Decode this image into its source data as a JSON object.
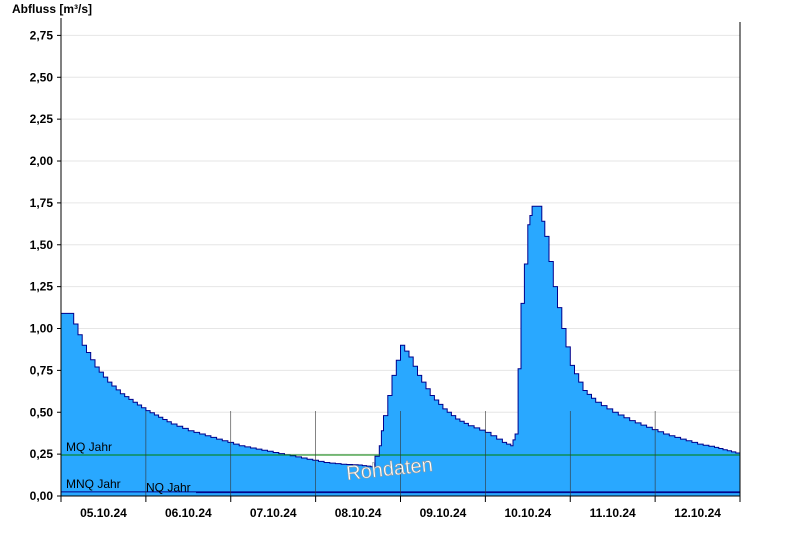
{
  "chart_data": {
    "type": "area",
    "ylabel": "Abfluss [m³/s]",
    "ylim": [
      0,
      2.83
    ],
    "y_ticks": [
      "0,00",
      "0,25",
      "0,50",
      "0,75",
      "1,00",
      "1,25",
      "1,50",
      "1,75",
      "2,00",
      "2,25",
      "2,50",
      "2,75"
    ],
    "y_tick_values": [
      0,
      0.25,
      0.5,
      0.75,
      1.0,
      1.25,
      1.5,
      1.75,
      2.0,
      2.25,
      2.5,
      2.75
    ],
    "x_tick_labels": [
      "05.10.24",
      "06.10.24",
      "07.10.24",
      "08.10.24",
      "09.10.24",
      "10.10.24",
      "11.10.24",
      "12.10.24"
    ],
    "xlim": [
      0,
      8
    ],
    "grid": true,
    "watermark": "Rohdaten",
    "colors": {
      "fill": "#29a8ff",
      "line": "#00008b",
      "mq": "#008000",
      "mnq": "#00008b"
    },
    "reference_lines": [
      {
        "label": "MQ Jahr",
        "value": 0.245
      },
      {
        "label": "MNQ Jahr",
        "value": 0.025
      },
      {
        "label": "NQ Jahr",
        "value": 0.02
      }
    ],
    "series": [
      {
        "x": [
          0,
          0.1,
          0.25,
          0.4,
          0.55,
          0.7,
          0.85,
          1.0,
          1.15,
          1.3,
          1.5,
          1.7,
          1.9,
          2.1,
          2.3,
          2.5,
          2.7,
          2.9,
          3.1,
          3.3,
          3.5,
          3.65,
          3.75,
          3.8,
          3.9,
          4.0,
          4.1,
          4.2,
          4.35,
          4.5,
          4.65,
          4.8,
          5.0,
          5.2,
          5.3,
          5.35,
          5.42,
          5.5,
          5.55,
          5.63,
          5.7,
          5.8,
          5.9,
          6.0,
          6.15,
          6.3,
          6.5,
          6.7,
          6.9,
          7.1,
          7.3,
          7.5,
          7.7,
          7.85,
          8.0
        ],
        "y": [
          1.09,
          1.09,
          0.9,
          0.77,
          0.68,
          0.61,
          0.56,
          0.51,
          0.47,
          0.43,
          0.39,
          0.36,
          0.33,
          0.3,
          0.28,
          0.26,
          0.24,
          0.22,
          0.2,
          0.19,
          0.185,
          0.175,
          0.3,
          0.48,
          0.72,
          0.9,
          0.83,
          0.72,
          0.6,
          0.52,
          0.46,
          0.42,
          0.38,
          0.32,
          0.3,
          0.37,
          1.15,
          1.62,
          1.73,
          1.73,
          1.55,
          1.25,
          1.0,
          0.78,
          0.63,
          0.56,
          0.5,
          0.45,
          0.41,
          0.37,
          0.34,
          0.31,
          0.29,
          0.27,
          0.25
        ]
      }
    ]
  }
}
